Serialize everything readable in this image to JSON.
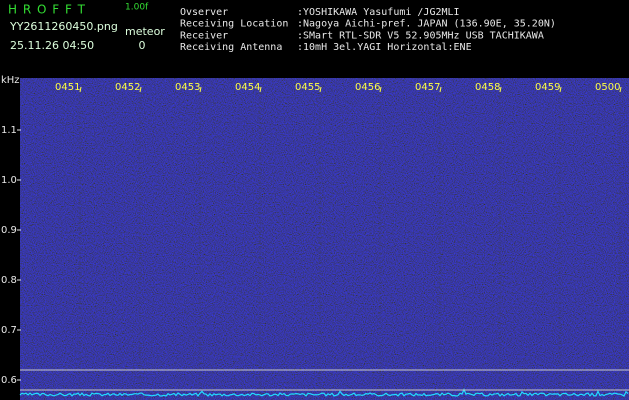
{
  "header": {
    "app_name": "H R O F F T",
    "version": "1.00f",
    "file_name": "YY2611260450.png",
    "timestamp": "25.11.26 04:50",
    "meteor_label": "meteor",
    "meteor_count": 0,
    "info": [
      {
        "label": "Ovserver",
        "value": ":YOSHIKAWA Yasufumi /JG2MLI"
      },
      {
        "label": "Receiving Location",
        "value": ":Nagoya Aichi-pref. JAPAN (136.90E, 35.20N)"
      },
      {
        "label": "Receiver",
        "value": ":SMart RTL-SDR V5 52.905MHz USB TACHIKAWA"
      },
      {
        "label": "Receiving Antenna",
        "value": ":10mH 3el.YAGI Horizontal:ENE"
      }
    ]
  },
  "spectrogram": {
    "y_label": "kHz",
    "ylim": [
      0.56,
      1.2
    ],
    "yticks": [
      1.1,
      {
        "value": 1.0,
        "label": "1.0"
      },
      0.9,
      0.8,
      0.7,
      0.6
    ],
    "time_labels": [
      "0451",
      "0452",
      "0453",
      "0454",
      "0455",
      "0456",
      "0457",
      "0458",
      "0459",
      "0500"
    ],
    "reference_lines": [
      0.62,
      0.58
    ]
  }
}
